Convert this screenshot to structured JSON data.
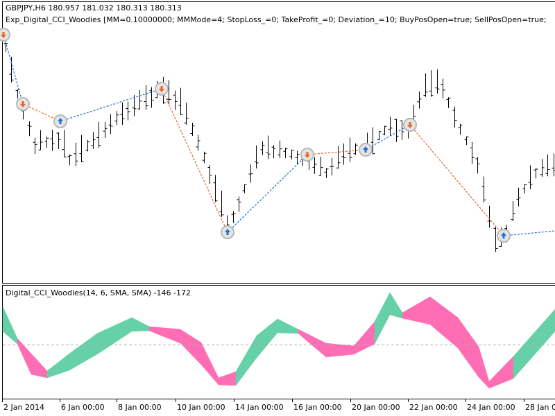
{
  "header": {
    "symbol_line": "GBPJPY,H6  180.957 181.032 180.313 180.313",
    "expert_line": "Exp_Digital_CCI_Woodies [MM=0.10000000; MMMode=4; StopLoss_=0; TakeProfit_=0; Deviation_=10; BuyPosOpen=true; SellPosOpen=true;"
  },
  "indicator": {
    "label": "Digital_CCI_Woodies(14, 6, SMA, SMA) -146 -172"
  },
  "time_axis": {
    "labels": [
      "2 Jan 2014",
      "6 Jan 00:00",
      "8 Jan 00:00",
      "10 Jan 00:00",
      "14 Jan 00:00",
      "16 Jan 00:00",
      "20 Jan 00:00",
      "22 Jan 00:00",
      "24 Jan 00:00",
      "28 Jan 00:"
    ]
  }
}
